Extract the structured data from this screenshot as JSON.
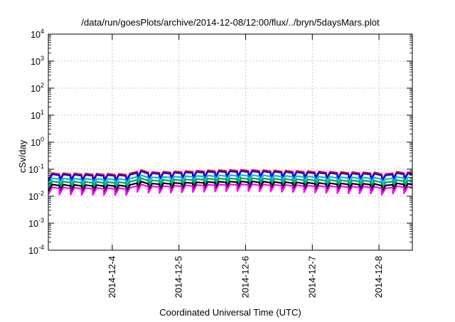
{
  "chart_data": {
    "type": "line",
    "title": "/data/run/goesPlots/archive/2014-12-08/12:00/flux/../bryn/5daysMars.plot",
    "xlabel": "Coordinated Universal Time (UTC)",
    "ylabel": "cSv/day",
    "yscale": "log",
    "ylim": [
      0.0001,
      10000
    ],
    "xlim": [
      "2014-12-03 01:00",
      "2014-12-08 12:00"
    ],
    "grid": true,
    "y_ticks": [
      {
        "base": "10",
        "exp": "-4"
      },
      {
        "base": "10",
        "exp": "-3"
      },
      {
        "base": "10",
        "exp": "-2"
      },
      {
        "base": "10",
        "exp": "-1"
      },
      {
        "base": "10",
        "exp": "0"
      },
      {
        "base": "10",
        "exp": "1"
      },
      {
        "base": "10",
        "exp": "2"
      },
      {
        "base": "10",
        "exp": "3"
      },
      {
        "base": "10",
        "exp": "4"
      }
    ],
    "x_ticks": [
      "2014-12-4",
      "2014-12-5",
      "2014-12-6",
      "2014-12-7",
      "2014-12-8"
    ],
    "x_tick_dates": [
      "2014-12-04 00:00",
      "2014-12-05 00:00",
      "2014-12-06 00:00",
      "2014-12-07 00:00",
      "2014-12-08 00:00"
    ],
    "sawtooth": {
      "period_hours": 4,
      "drop_fraction": 0.55,
      "base_times": [
        "2014-12-03 01:00",
        "2014-12-03 12:00",
        "2014-12-04 06:00",
        "2014-12-04 10:00",
        "2014-12-04 14:00",
        "2014-12-05 00:00",
        "2014-12-05 12:00",
        "2014-12-06 00:00",
        "2014-12-06 12:00",
        "2014-12-07 00:00",
        "2014-12-07 12:00",
        "2014-12-08 00:00",
        "2014-12-08 02:00",
        "2014-12-08 06:00",
        "2014-12-08 12:00"
      ],
      "base_values": [
        0.065,
        0.062,
        0.06,
        0.085,
        0.07,
        0.075,
        0.082,
        0.085,
        0.08,
        0.075,
        0.07,
        0.068,
        0.058,
        0.072,
        0.068
      ]
    },
    "series": [
      {
        "color": "#ff0000",
        "scale": 1.12
      },
      {
        "color": "#0000ff",
        "scale": 1.0
      },
      {
        "color": "#00c0c0",
        "scale": 0.72
      },
      {
        "color": "#00a060",
        "scale": 0.55
      },
      {
        "color": "#000000",
        "scale": 0.42
      },
      {
        "color": "#ff00ff",
        "scale": 0.33
      }
    ]
  }
}
